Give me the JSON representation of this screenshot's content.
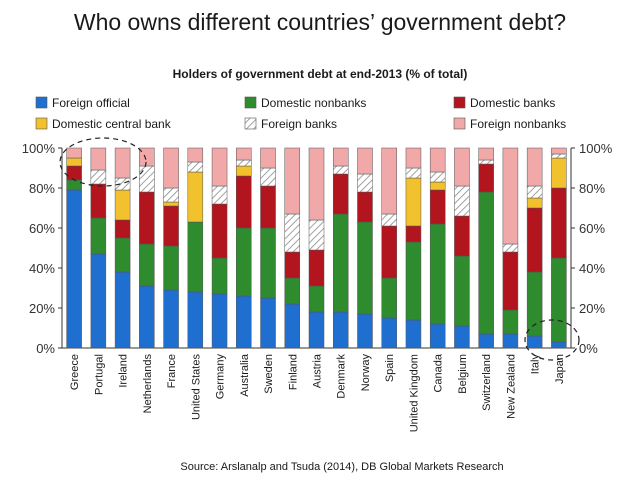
{
  "page": {
    "title": "Who owns different countries’ government debt?",
    "source": "Source: Arslanalp and Tsuda (2014), DB Global Markets Research"
  },
  "chart_data": {
    "type": "bar",
    "stacked": true,
    "title": "Holders of government debt at end-2013 (% of total)",
    "xlabel": "",
    "ylabel": "",
    "ylim": [
      0,
      100
    ],
    "yticks": [
      "0%",
      "20%",
      "40%",
      "60%",
      "80%",
      "100%"
    ],
    "y2ticks": [
      "0%",
      "20%",
      "40%",
      "60%",
      "80%",
      "100%"
    ],
    "grid": false,
    "legend_position": "top",
    "categories": [
      "Greece",
      "Portugal",
      "Ireland",
      "Netherlands",
      "France",
      "United States",
      "Germany",
      "Australia",
      "Sweden",
      "Finland",
      "Austria",
      "Denmark",
      "Norway",
      "Spain",
      "United Kingdom",
      "Canada",
      "Belgium",
      "Switzerland",
      "New Zealand",
      "Italy",
      "Japan"
    ],
    "series": [
      {
        "name": "Foreign official",
        "color": "#1f6fd1",
        "pattern": "solid",
        "values": [
          79,
          47,
          38,
          31,
          29,
          28,
          27,
          26,
          25,
          22,
          18,
          18,
          17,
          15,
          14,
          12,
          11,
          7,
          7,
          6,
          3
        ]
      },
      {
        "name": "Domestic nonbanks",
        "color": "#2e8b2e",
        "pattern": "solid",
        "values": [
          5,
          18,
          17,
          21,
          22,
          35,
          18,
          34,
          35,
          13,
          13,
          49,
          46,
          20,
          39,
          50,
          35,
          71,
          12,
          32,
          42
        ]
      },
      {
        "name": "Domestic banks",
        "color": "#b3151e",
        "pattern": "solid",
        "values": [
          7,
          17,
          9,
          26,
          20,
          0,
          27,
          26,
          21,
          13,
          18,
          20,
          15,
          26,
          8,
          17,
          20,
          14,
          29,
          32,
          35
        ]
      },
      {
        "name": "Domestic central bank",
        "color": "#f2c12e",
        "pattern": "solid",
        "values": [
          4,
          0,
          15,
          0,
          2,
          25,
          0,
          5,
          0,
          0,
          0,
          0,
          0,
          0,
          24,
          4,
          0,
          0,
          0,
          5,
          15
        ]
      },
      {
        "name": "Foreign banks",
        "color": "#ffffff",
        "pattern": "hatch",
        "values": [
          0,
          7,
          6,
          13,
          7,
          5,
          9,
          3,
          9,
          19,
          15,
          4,
          9,
          6,
          5,
          5,
          15,
          2,
          4,
          6,
          2
        ]
      },
      {
        "name": "Foreign nonbanks",
        "color": "#f0a8a8",
        "pattern": "solid",
        "values": [
          5,
          11,
          15,
          9,
          20,
          7,
          19,
          6,
          10,
          33,
          36,
          9,
          13,
          33,
          10,
          12,
          19,
          6,
          48,
          19,
          3
        ]
      }
    ],
    "highlights": [
      "Greece, Portugal, Ireland (top)",
      "Italy, Japan (bottom)"
    ]
  },
  "colors": {
    "outline": "#555555",
    "hatch_line": "#8a8a8a",
    "axis": "#333333"
  }
}
